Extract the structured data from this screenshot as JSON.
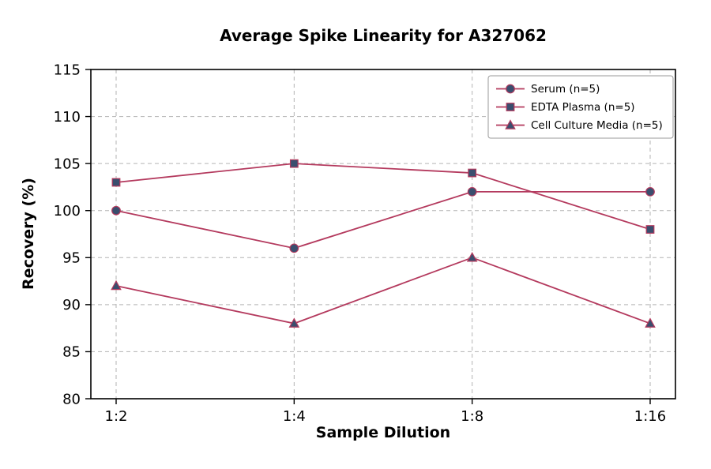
{
  "chart_data": {
    "type": "line",
    "title": "Average Spike Linearity for A327062",
    "xlabel": "Sample Dilution",
    "ylabel": "Recovery (%)",
    "categories": [
      "1:2",
      "1:4",
      "1:8",
      "1:16"
    ],
    "series": [
      {
        "name": "Serum (n=5)",
        "marker": "circle",
        "values": [
          100,
          96,
          102,
          102
        ]
      },
      {
        "name": "EDTA Plasma (n=5)",
        "marker": "square",
        "values": [
          103,
          105,
          104,
          98
        ]
      },
      {
        "name": "Cell Culture Media (n=5)",
        "marker": "triangle",
        "values": [
          92,
          88,
          95,
          88
        ]
      }
    ],
    "ylim": [
      80,
      115
    ],
    "yticks": [
      80,
      85,
      90,
      95,
      100,
      105,
      110,
      115
    ],
    "grid": true,
    "legend_position": "upper right",
    "line_color": "#b43a5e",
    "marker_color": "#3a4e6e",
    "grid_color": "#b3b3b3",
    "axis_color": "#000000",
    "legend_border_color": "#9a9a9a"
  }
}
